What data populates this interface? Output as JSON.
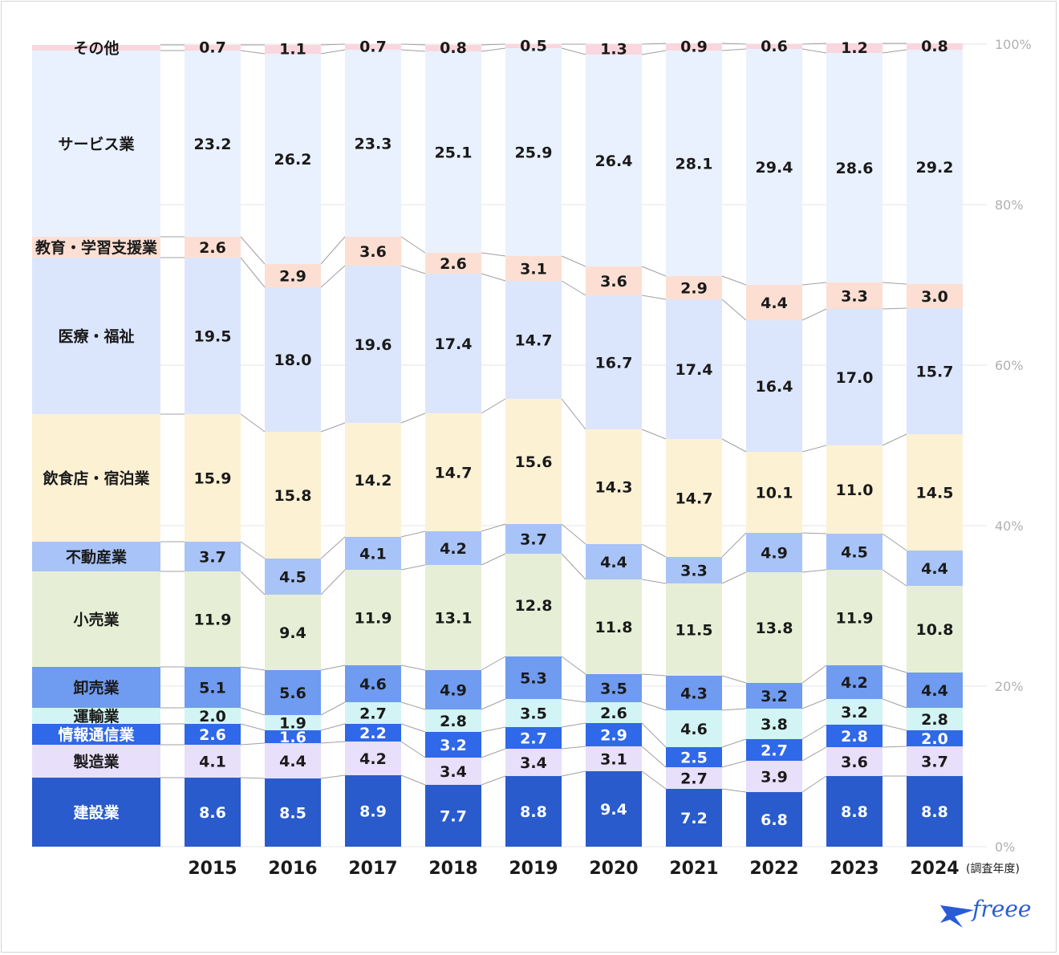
{
  "chart_data": {
    "type": "bar",
    "stacked": true,
    "normalized": true,
    "categories": [
      "2015",
      "2016",
      "2017",
      "2018",
      "2019",
      "2020",
      "2021",
      "2022",
      "2023",
      "2024"
    ],
    "x_unit_label": "(調査年度)",
    "ylim": [
      0,
      100
    ],
    "yticks": [
      "0%",
      "20%",
      "40%",
      "60%",
      "80%",
      "100%"
    ],
    "grid": true,
    "legend_placement": "left",
    "series": [
      {
        "name": "建設業",
        "color": "#2a5bcc",
        "dark": true,
        "values": [
          8.6,
          8.5,
          8.9,
          7.7,
          8.8,
          9.4,
          7.2,
          6.8,
          8.8,
          8.8
        ]
      },
      {
        "name": "製造業",
        "color": "#e8dffa",
        "dark": false,
        "values": [
          4.1,
          4.4,
          4.2,
          3.4,
          3.4,
          3.1,
          2.7,
          3.9,
          3.6,
          3.7
        ]
      },
      {
        "name": "情報通信業",
        "color": "#2f68e8",
        "dark": true,
        "values": [
          2.6,
          1.6,
          2.2,
          3.2,
          2.7,
          2.9,
          2.5,
          2.7,
          2.8,
          2.0
        ]
      },
      {
        "name": "運輸業",
        "color": "#d2f4f4",
        "dark": false,
        "values": [
          2.0,
          1.9,
          2.7,
          2.8,
          3.5,
          2.6,
          4.6,
          3.8,
          3.2,
          2.8
        ]
      },
      {
        "name": "卸売業",
        "color": "#6f9bf0",
        "dark": false,
        "values": [
          5.1,
          5.6,
          4.6,
          4.9,
          5.3,
          3.5,
          4.3,
          3.2,
          4.2,
          4.4
        ]
      },
      {
        "name": "小売業",
        "color": "#e6efd6",
        "dark": false,
        "values": [
          11.9,
          9.4,
          11.9,
          13.1,
          12.8,
          11.8,
          11.5,
          13.8,
          11.9,
          10.8
        ]
      },
      {
        "name": "不動産業",
        "color": "#a8c3f7",
        "dark": false,
        "values": [
          3.7,
          4.5,
          4.1,
          4.2,
          3.7,
          4.4,
          3.3,
          4.9,
          4.5,
          4.4
        ]
      },
      {
        "name": "飲食店・宿泊業",
        "color": "#fdf1d4",
        "dark": false,
        "values": [
          15.9,
          15.8,
          14.2,
          14.7,
          15.6,
          14.3,
          14.7,
          10.1,
          11.0,
          14.5
        ]
      },
      {
        "name": "医療・福祉",
        "color": "#dbe6fc",
        "dark": false,
        "values": [
          19.5,
          18.0,
          19.6,
          17.4,
          14.7,
          16.7,
          17.4,
          16.4,
          17.0,
          15.7
        ]
      },
      {
        "name": "教育・学習支援業",
        "color": "#fcdfd2",
        "dark": false,
        "values": [
          2.6,
          2.9,
          3.6,
          2.6,
          3.1,
          3.6,
          2.9,
          4.4,
          3.3,
          3.0
        ]
      },
      {
        "name": "サービス業",
        "color": "#e9f1fe",
        "dark": false,
        "values": [
          23.2,
          26.2,
          23.3,
          25.1,
          25.9,
          26.4,
          28.1,
          29.4,
          28.6,
          29.2
        ]
      },
      {
        "name": "その他",
        "color": "#fad6de",
        "dark": false,
        "values": [
          0.7,
          1.1,
          0.7,
          0.8,
          0.5,
          1.3,
          0.9,
          0.6,
          1.2,
          0.8
        ]
      }
    ]
  },
  "logo": {
    "text": "freee"
  }
}
